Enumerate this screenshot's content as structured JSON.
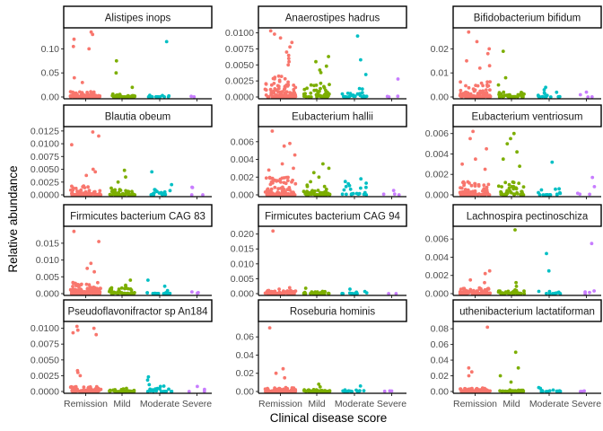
{
  "chart_data": {
    "type": "scatter",
    "layout": "facet-grid 4x3",
    "xlabel": "Clinical disease score",
    "ylabel": "Relative abundance",
    "categories": [
      "Remission",
      "Mild",
      "Moderate",
      "Severe"
    ],
    "category_colors": [
      "#F8766D",
      "#7CAE00",
      "#00BFC4",
      "#C77CFF"
    ],
    "grid": false,
    "legend": "none",
    "panels": [
      {
        "title": "Alistipes inops",
        "ylim": [
          0,
          0.14
        ],
        "yticks": [
          0,
          0.05,
          0.1
        ],
        "ytick_labels": [
          "0.00",
          "0.05",
          "0.10"
        ],
        "points": [
          {
            "category": "Remission",
            "n": 90,
            "typical": 0.005,
            "outliers": [
              0.135,
              0.13,
              0.12,
              0.105,
              0.1,
              0.04,
              0.03
            ]
          },
          {
            "category": "Mild",
            "n": 40,
            "typical": 0.003,
            "outliers": [
              0.075,
              0.05,
              0.02
            ]
          },
          {
            "category": "Moderate",
            "n": 12,
            "typical": 0.002,
            "outliers": [
              0.115
            ]
          },
          {
            "category": "Severe",
            "n": 2,
            "typical": 0.001,
            "outliers": []
          }
        ]
      },
      {
        "title": "Anaerostipes hadrus",
        "ylim": [
          0,
          0.0105
        ],
        "yticks": [
          0,
          0.0025,
          0.005,
          0.0075,
          0.01
        ],
        "ytick_labels": [
          "0.0000",
          "0.0025",
          "0.0050",
          "0.0075",
          "0.0100"
        ],
        "points": [
          {
            "category": "Remission",
            "n": 110,
            "typical": 0.0015,
            "outliers": [
              0.0103,
              0.0098,
              0.0092,
              0.0085,
              0.0078,
              0.007,
              0.0065,
              0.006,
              0.0055,
              0.005
            ]
          },
          {
            "category": "Mild",
            "n": 45,
            "typical": 0.001,
            "outliers": [
              0.0063,
              0.0055,
              0.0048,
              0.0042,
              0.0038
            ]
          },
          {
            "category": "Moderate",
            "n": 25,
            "typical": 0.0008,
            "outliers": [
              0.0095,
              0.0058,
              0.0035
            ]
          },
          {
            "category": "Severe",
            "n": 3,
            "typical": 0.0004,
            "outliers": [
              0.0028
            ]
          }
        ]
      },
      {
        "title": "Bifidobacterium bifidum",
        "ylim": [
          0,
          0.028
        ],
        "yticks": [
          0,
          0.01,
          0.02
        ],
        "ytick_labels": [
          "0.00",
          "0.01",
          "0.02"
        ],
        "points": [
          {
            "category": "Remission",
            "n": 90,
            "typical": 0.003,
            "outliers": [
              0.027,
              0.023,
              0.02,
              0.018,
              0.015,
              0.013,
              0.012
            ]
          },
          {
            "category": "Mild",
            "n": 40,
            "typical": 0.001,
            "outliers": [
              0.019,
              0.008,
              0.005
            ]
          },
          {
            "category": "Moderate",
            "n": 14,
            "typical": 0.001,
            "outliers": [
              0.004,
              0.003
            ]
          },
          {
            "category": "Severe",
            "n": 3,
            "typical": 0.001,
            "outliers": [
              0.002
            ]
          }
        ]
      },
      {
        "title": "Blautia obeum",
        "ylim": [
          0,
          0.013
        ],
        "yticks": [
          0,
          0.0025,
          0.005,
          0.0075,
          0.01,
          0.0125
        ],
        "ytick_labels": [
          "0.0000",
          "0.0025",
          "0.0050",
          "0.0075",
          "0.0100",
          "0.0125"
        ],
        "points": [
          {
            "category": "Remission",
            "n": 90,
            "typical": 0.0008,
            "outliers": [
              0.0123,
              0.0115,
              0.0098,
              0.005,
              0.0045,
              0.0038
            ]
          },
          {
            "category": "Mild",
            "n": 45,
            "typical": 0.0006,
            "outliers": [
              0.0048,
              0.0035,
              0.0025
            ]
          },
          {
            "category": "Moderate",
            "n": 18,
            "typical": 0.0005,
            "outliers": [
              0.0045,
              0.002
            ]
          },
          {
            "category": "Severe",
            "n": 3,
            "typical": 0.0007,
            "outliers": [
              0.0015
            ]
          }
        ]
      },
      {
        "title": "Eubacterium hallii",
        "ylim": [
          0,
          0.0075
        ],
        "yticks": [
          0,
          0.002,
          0.004,
          0.006
        ],
        "ytick_labels": [
          "0.000",
          "0.002",
          "0.004",
          "0.006"
        ],
        "points": [
          {
            "category": "Remission",
            "n": 100,
            "typical": 0.0009,
            "outliers": [
              0.0072,
              0.0058,
              0.0055,
              0.0045,
              0.0035,
              0.003,
              0.0028
            ]
          },
          {
            "category": "Mild",
            "n": 40,
            "typical": 0.0007,
            "outliers": [
              0.0035,
              0.003,
              0.0025,
              0.002
            ]
          },
          {
            "category": "Moderate",
            "n": 20,
            "typical": 0.0006,
            "outliers": [
              0.0018,
              0.0015
            ]
          },
          {
            "category": "Severe",
            "n": 3,
            "typical": 0.0003,
            "outliers": [
              0.0005
            ]
          }
        ]
      },
      {
        "title": "Eubacterium ventriosum",
        "ylim": [
          0,
          0.0065
        ],
        "yticks": [
          0,
          0.002,
          0.004,
          0.006
        ],
        "ytick_labels": [
          "0.000",
          "0.002",
          "0.004",
          "0.006"
        ],
        "points": [
          {
            "category": "Remission",
            "n": 90,
            "typical": 0.0006,
            "outliers": [
              0.0062,
              0.0055,
              0.0045,
              0.0035,
              0.003,
              0.0025
            ]
          },
          {
            "category": "Mild",
            "n": 45,
            "typical": 0.0006,
            "outliers": [
              0.006,
              0.0055,
              0.005,
              0.0042,
              0.0035,
              0.0028
            ]
          },
          {
            "category": "Moderate",
            "n": 15,
            "typical": 0.0003,
            "outliers": [
              0.0032
            ]
          },
          {
            "category": "Severe",
            "n": 3,
            "typical": 0.0002,
            "outliers": [
              0.0017,
              0.0008
            ]
          }
        ]
      },
      {
        "title": "Firmicutes bacterium CAG 83",
        "ylim": [
          0,
          0.0195
        ],
        "yticks": [
          0,
          0.005,
          0.01,
          0.015
        ],
        "ytick_labels": [
          "0.000",
          "0.005",
          "0.010",
          "0.015"
        ],
        "points": [
          {
            "category": "Remission",
            "n": 110,
            "typical": 0.0015,
            "outliers": [
              0.0185,
              0.0155,
              0.009,
              0.0075,
              0.0065
            ]
          },
          {
            "category": "Mild",
            "n": 40,
            "typical": 0.0008,
            "outliers": [
              0.004,
              0.0025,
              0.0022
            ]
          },
          {
            "category": "Moderate",
            "n": 20,
            "typical": 0.0005,
            "outliers": [
              0.004,
              0.0022
            ]
          },
          {
            "category": "Severe",
            "n": 2,
            "typical": 0.0003,
            "outliers": [
              0.0005
            ]
          }
        ]
      },
      {
        "title": "Firmicutes bacterium CAG 94",
        "ylim": [
          0,
          0.022
        ],
        "yticks": [
          0,
          0.005,
          0.01,
          0.015,
          0.02
        ],
        "ytick_labels": [
          "0.000",
          "0.005",
          "0.010",
          "0.015",
          "0.020"
        ],
        "points": [
          {
            "category": "Remission",
            "n": 70,
            "typical": 0.0005,
            "outliers": [
              0.021,
              0.002,
              0.0015
            ]
          },
          {
            "category": "Mild",
            "n": 30,
            "typical": 0.0004,
            "outliers": [
              0.0018
            ]
          },
          {
            "category": "Moderate",
            "n": 12,
            "typical": 0.0004,
            "outliers": [
              0.0015
            ]
          },
          {
            "category": "Severe",
            "n": 2,
            "typical": 0.0002,
            "outliers": []
          }
        ]
      },
      {
        "title": "Lachnospira pectinoschiza",
        "ylim": [
          0,
          0.0072
        ],
        "yticks": [
          0,
          0.002,
          0.004,
          0.006
        ],
        "ytick_labels": [
          "0.000",
          "0.002",
          "0.004",
          "0.006"
        ],
        "points": [
          {
            "category": "Remission",
            "n": 90,
            "typical": 0.0003,
            "outliers": [
              0.0025,
              0.0022,
              0.0015,
              0.0012
            ]
          },
          {
            "category": "Mild",
            "n": 40,
            "typical": 0.0002,
            "outliers": [
              0.007,
              0.0012,
              0.0008
            ]
          },
          {
            "category": "Moderate",
            "n": 12,
            "typical": 0.0002,
            "outliers": [
              0.0044,
              0.0025
            ]
          },
          {
            "category": "Severe",
            "n": 3,
            "typical": 0.0001,
            "outliers": [
              0.0055,
              0.0003
            ]
          }
        ]
      },
      {
        "title": "Pseudoflavonifractor sp An184",
        "ylim": [
          0,
          0.0108
        ],
        "yticks": [
          0,
          0.0025,
          0.005,
          0.0075,
          0.01
        ],
        "ytick_labels": [
          "0.0000",
          "0.0025",
          "0.0050",
          "0.0075",
          "0.0100"
        ],
        "points": [
          {
            "category": "Remission",
            "n": 80,
            "typical": 0.0004,
            "outliers": [
              0.0103,
              0.01,
              0.0097,
              0.0093,
              0.009,
              0.0033,
              0.003,
              0.0025
            ]
          },
          {
            "category": "Mild",
            "n": 40,
            "typical": 0.0002,
            "outliers": [
              0.0005
            ]
          },
          {
            "category": "Moderate",
            "n": 20,
            "typical": 0.0005,
            "outliers": [
              0.0023,
              0.0018
            ]
          },
          {
            "category": "Severe",
            "n": 3,
            "typical": 0.0003,
            "outliers": [
              0.0008
            ]
          }
        ]
      },
      {
        "title": "Roseburia hominis",
        "ylim": [
          0,
          0.075
        ],
        "yticks": [
          0,
          0.02,
          0.04,
          0.06
        ],
        "ytick_labels": [
          "0.00",
          "0.02",
          "0.04",
          "0.06"
        ],
        "points": [
          {
            "category": "Remission",
            "n": 80,
            "typical": 0.002,
            "outliers": [
              0.07,
              0.025,
              0.02,
              0.015
            ]
          },
          {
            "category": "Mild",
            "n": 40,
            "typical": 0.001,
            "outliers": [
              0.008,
              0.005
            ]
          },
          {
            "category": "Moderate",
            "n": 15,
            "typical": 0.001,
            "outliers": [
              0.006
            ]
          },
          {
            "category": "Severe",
            "n": 3,
            "typical": 0.0005,
            "outliers": []
          }
        ]
      },
      {
        "title": "uthenibacterium lactatiforman",
        "ylim": [
          0,
          0.087
        ],
        "yticks": [
          0,
          0.02,
          0.04,
          0.06,
          0.08
        ],
        "ytick_labels": [
          "0.00",
          "0.02",
          "0.04",
          "0.06",
          "0.08"
        ],
        "points": [
          {
            "category": "Remission",
            "n": 80,
            "typical": 0.002,
            "outliers": [
              0.082,
              0.03,
              0.025,
              0.02
            ]
          },
          {
            "category": "Mild",
            "n": 40,
            "typical": 0.001,
            "outliers": [
              0.05,
              0.03,
              0.02,
              0.012
            ]
          },
          {
            "category": "Moderate",
            "n": 15,
            "typical": 0.001,
            "outliers": [
              0.005,
              0.004
            ]
          },
          {
            "category": "Severe",
            "n": 3,
            "typical": 0.0005,
            "outliers": []
          }
        ]
      }
    ]
  }
}
